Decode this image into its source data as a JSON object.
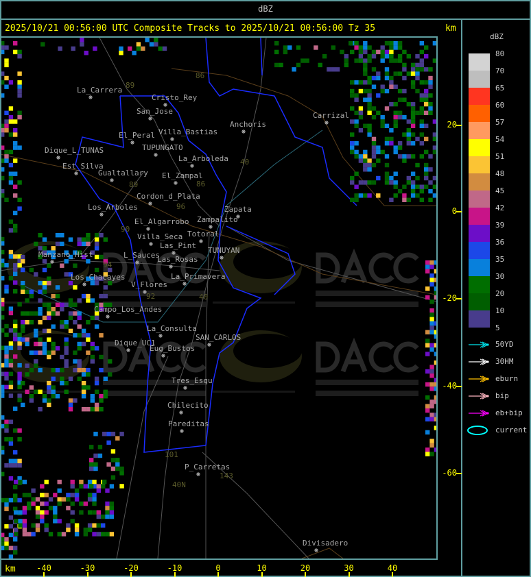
{
  "window": {
    "title": "dBZ"
  },
  "header": {
    "text": "2025/10/21 00:56:00 UTC Composite Tracks to 2025/10/21 00:56:00 Tz 35",
    "unit": "km"
  },
  "axes": {
    "y_unit": "km",
    "y_ticks": [
      "20",
      "0",
      "-20",
      "-40",
      "-60"
    ],
    "x_unit": "km",
    "x_ticks": [
      "-40",
      "-30",
      "-20",
      "-10",
      "0",
      "10",
      "20",
      "30",
      "40"
    ]
  },
  "legend": {
    "title": "dBZ",
    "levels": [
      "80",
      "70",
      "65",
      "60",
      "57",
      "54",
      "51",
      "48",
      "45",
      "42",
      "39",
      "36",
      "35",
      "30",
      "20",
      "10",
      "5"
    ],
    "colors": [
      "#d3d3d3",
      "#bebebe",
      "#ff3520",
      "#ff6000",
      "#ff9a60",
      "#ffff00",
      "#fbc434",
      "#d28c40",
      "#c06888",
      "#c81488",
      "#6c0ec8",
      "#1c48e8",
      "#0880dc",
      "#006e00",
      "#005e00",
      "#483c8c"
    ],
    "tracks": [
      {
        "label": "50YD",
        "color": "#00e5ee"
      },
      {
        "label": "30HM",
        "color": "#ffffff"
      },
      {
        "label": "eburn",
        "color": "#ffc000"
      },
      {
        "label": "bip",
        "color": "#ffb6c1"
      },
      {
        "label": "eb+bip",
        "color": "#ff00ff"
      },
      {
        "label": "current",
        "color": "#00ffff"
      }
    ]
  },
  "places": [
    "La_Carrera",
    "Cristo_Rey",
    "San_Jose",
    "Villa_Bastias",
    "El_Peral",
    "TUPUNGATO",
    "Dique_L_TUNAS",
    "La_Arboleda",
    "Est_Silva",
    "Gualtallary",
    "El_Zampal",
    "Anchoris",
    "Carrizal",
    "Cordon_d_Plata",
    "Los_Arboles",
    "Zapata",
    "El_Algarrobo",
    "Zampalito",
    "Totoral",
    "Villa_Seca",
    "Las_Pint",
    "TUNUYAN",
    "Manzano_Hist",
    "L_Sauces",
    "Las_Rosas",
    "Los_Chacayes",
    "La_Primavera",
    "V_Flores",
    "Campo_Los_Andes",
    "La_Consulta",
    "SAN_CARLOS",
    "Dique_UC1",
    "Eug_Bustos",
    "Tres_Esqu",
    "Chilecito",
    "Pareditas",
    "P_Carretas",
    "Divisadero"
  ],
  "routes": [
    "89",
    "86",
    "40",
    "86",
    "96",
    "89",
    "90",
    "94",
    "92",
    "40",
    "101",
    "143",
    "40N"
  ],
  "watermark": {
    "logo": "DACC",
    "line1": "Dirección de Agricultura",
    "line2": "y Contingencias Climáticas",
    "url": "http://www.contingencias.mendoza.gov.ar"
  }
}
